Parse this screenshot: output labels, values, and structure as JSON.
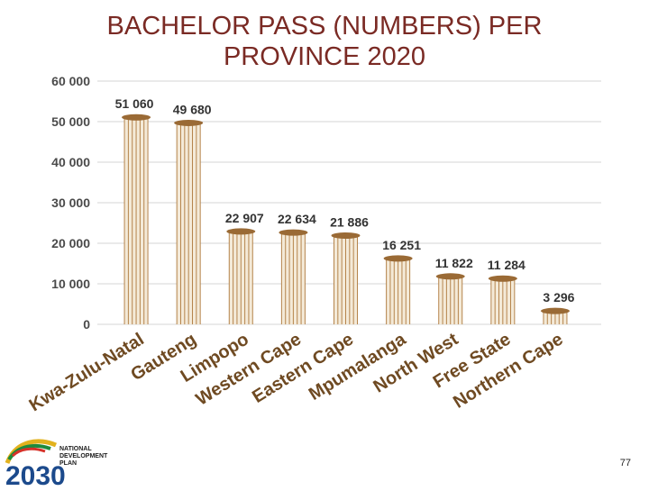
{
  "title_line1": "BACHELOR PASS (NUMBERS) PER",
  "title_line2": "PROVINCE 2020",
  "page_number": "77",
  "logo": {
    "text_line1": "NATIONAL",
    "text_line2": "DEVELOPMENT",
    "text_line3": "PLAN",
    "year": "2030"
  },
  "colors": {
    "bar_fill": "#f4ead8",
    "bar_stripe": "#b5844c",
    "bar_cap": "#9a6a35",
    "grid": "#d4d4d4",
    "category_text": "#6f4a22",
    "title": "#7a2a24",
    "logo_blue": "#1c4a8c"
  },
  "chart_data": {
    "type": "bar",
    "title": "BACHELOR PASS (NUMBERS) PER PROVINCE 2020",
    "categories": [
      "Kwa-Zulu-Natal",
      "Gauteng",
      "Limpopo",
      "Western Cape",
      "Eastern Cape",
      "Mpumalanga",
      "North West",
      "Free State",
      "Northern Cape"
    ],
    "values": [
      51060,
      49680,
      22907,
      22634,
      21886,
      16251,
      11822,
      11284,
      3296
    ],
    "value_labels": [
      "51 060",
      "49 680",
      "22 907",
      "22 634",
      "21 886",
      "16 251",
      "11 822",
      "11 284",
      "3 296"
    ],
    "yticks": [
      0,
      10000,
      20000,
      30000,
      40000,
      50000,
      60000
    ],
    "ytick_labels": [
      "0",
      "10 000",
      "20 000",
      "30 000",
      "40 000",
      "50 000",
      "60 000"
    ],
    "ylim": [
      0,
      60000
    ],
    "grid": true,
    "legend": false,
    "xlabel": "",
    "ylabel": ""
  }
}
